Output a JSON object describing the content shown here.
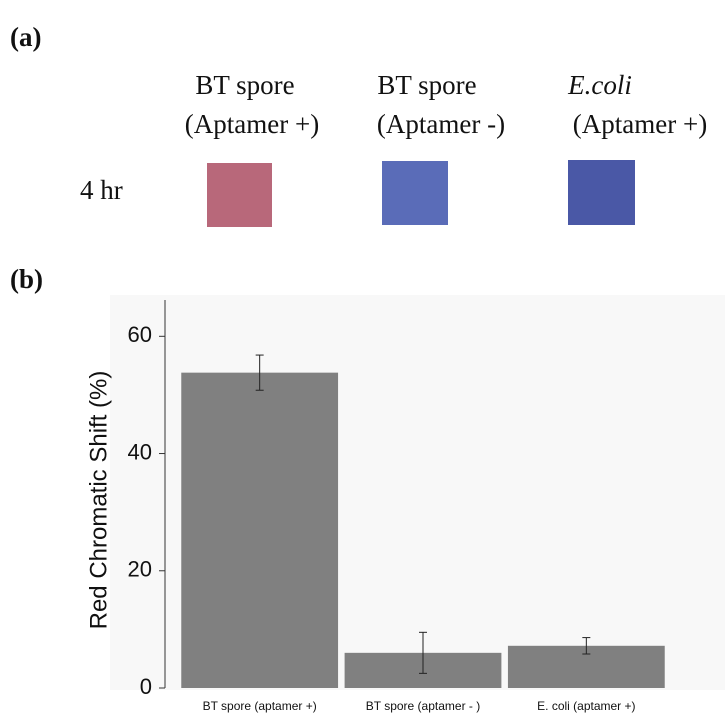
{
  "panel_a": {
    "label": "(a)",
    "columns": [
      [
        "BT spore",
        "(Aptamer +)"
      ],
      [
        "BT spore",
        "(Aptamer -)"
      ],
      [
        "E.coli",
        "(Aptamer +)"
      ]
    ],
    "row_label": "4 hr"
  },
  "panel_b": {
    "label": "(b)"
  },
  "chart_data": {
    "type": "bar",
    "y_label": "Red Chromatic Shift (%)",
    "categories": [
      "BT spore (aptamer +)",
      "BT spore (aptamer - )",
      "E. coli (aptamer +)"
    ],
    "values": [
      53.8,
      6.0,
      7.2
    ],
    "errors": [
      3.0,
      3.5,
      1.4
    ],
    "color": "#808080",
    "ylim": [
      0,
      65
    ],
    "yticks": [
      0,
      20,
      40,
      60
    ]
  }
}
